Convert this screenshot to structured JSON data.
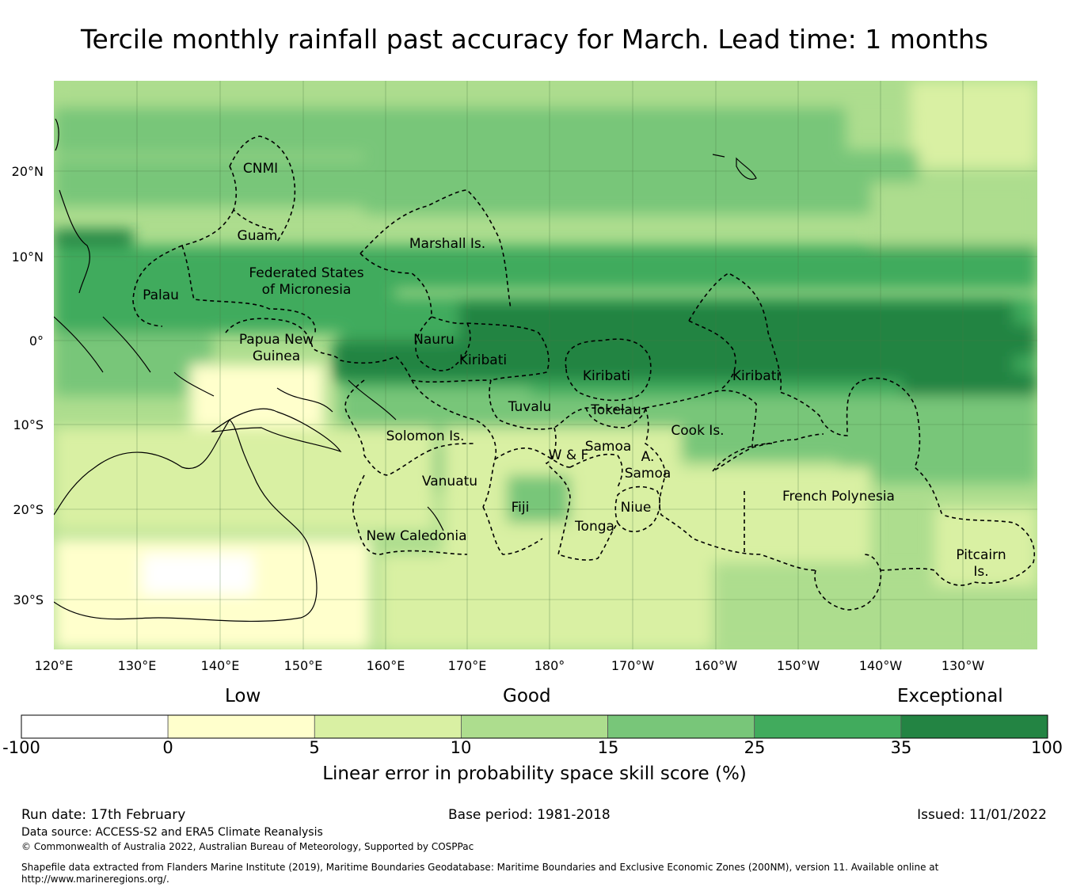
{
  "title": "Tercile monthly rainfall past accuracy for March. Lead time: 1 months",
  "map": {
    "lat_labels": [
      "20°N",
      "10°N",
      "0°",
      "10°S",
      "20°S",
      "30°S"
    ],
    "lon_labels": [
      "120°E",
      "130°E",
      "140°E",
      "150°E",
      "160°E",
      "170°E",
      "180°",
      "170°W",
      "160°W",
      "150°W",
      "140°W",
      "130°W"
    ],
    "regions": [
      {
        "label": "CNMI"
      },
      {
        "label": "Guam"
      },
      {
        "label": "Marshall Is."
      },
      {
        "label": "Federated States"
      },
      {
        "label": "of Micronesia"
      },
      {
        "label": "Palau"
      },
      {
        "label": "Papua New"
      },
      {
        "label": "Guinea"
      },
      {
        "label": "Nauru"
      },
      {
        "label": "Kiribati"
      },
      {
        "label": "Kiribati"
      },
      {
        "label": "Kiribati"
      },
      {
        "label": "Tuvalu"
      },
      {
        "label": "Tokelau"
      },
      {
        "label": "Cook Is."
      },
      {
        "label": "Solomon Is."
      },
      {
        "label": "Samoa"
      },
      {
        "label": "W & F"
      },
      {
        "label": "A."
      },
      {
        "label": "Samoa"
      },
      {
        "label": "Vanuatu"
      },
      {
        "label": "Fiji"
      },
      {
        "label": "Niue"
      },
      {
        "label": "Tonga"
      },
      {
        "label": "New Caledonia"
      },
      {
        "label": "French Polynesia"
      },
      {
        "label": "Pitcairn"
      },
      {
        "label": "Is."
      }
    ]
  },
  "colorbar": {
    "categories": [
      "Low",
      "Good",
      "Exceptional"
    ],
    "ticks": [
      "-100",
      "0",
      "5",
      "10",
      "15",
      "25",
      "35",
      "100"
    ],
    "colors": [
      "#ffffff",
      "#ffffcc",
      "#d9f0a3",
      "#addd8e",
      "#78c679",
      "#41ab5d",
      "#238443"
    ],
    "label": "Linear error in probability space skill score (%)"
  },
  "footer": {
    "run_date": "Run date: 17th February",
    "base_period": "Base period: 1981-2018",
    "issued": "Issued: 11/01/2022",
    "data_source": "Data source: ACCESS-S2 and ERA5 Climate Reanalysis",
    "copyright": "© Commonwealth of Australia 2022, Australian Bureau of Meteorology, Supported by COSPPac",
    "shapefile_line1": "Shapefile data extracted from Flanders Marine Institute (2019), Maritime Boundaries Geodatabase: Maritime Boundaries and Exclusive Economic Zones (200NM), version 11. Available online at",
    "shapefile_line2": "http://www.marineregions.org/."
  }
}
